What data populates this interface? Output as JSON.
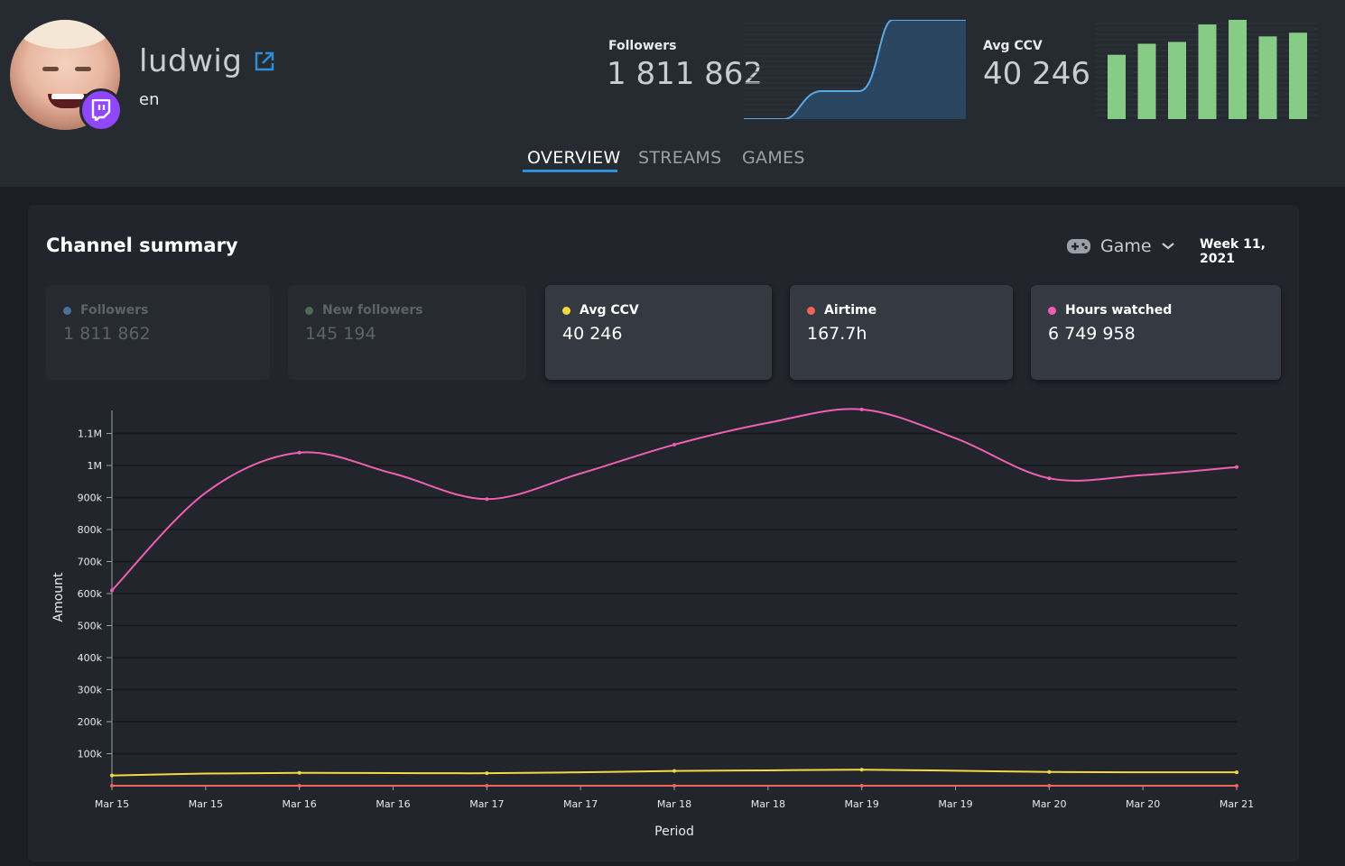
{
  "channel": {
    "name": "ludwig",
    "language": "en",
    "platform_icon": "twitch-icon"
  },
  "header_stats": {
    "followers": {
      "label": "Followers",
      "value": "1 811 862",
      "sparkline_color": "#5aa9e6"
    },
    "avg_ccv": {
      "label": "Avg CCV",
      "value": "40 246",
      "bar_color": "#86cc86",
      "bar_values": [
        70,
        82,
        84,
        103,
        108,
        90,
        94
      ]
    }
  },
  "tabs": [
    {
      "label": "OVERVIEW",
      "active": true
    },
    {
      "label": "STREAMS",
      "active": false
    },
    {
      "label": "GAMES",
      "active": false
    }
  ],
  "panel": {
    "title": "Channel summary",
    "game_select": {
      "label": "Game",
      "icon": "gamepad-icon"
    },
    "period": "Week 11, 2021",
    "cards": [
      {
        "label": "Followers",
        "value": "1 811 862",
        "color": "#4a6f9a",
        "active": false
      },
      {
        "label": "New followers",
        "value": "145 194",
        "color": "#4f6b52",
        "active": false
      },
      {
        "label": "Avg CCV",
        "value": "40 246",
        "color": "#f5d742",
        "active": true
      },
      {
        "label": "Airtime",
        "value": "167.7h",
        "color": "#f0655a",
        "active": true
      },
      {
        "label": "Hours watched",
        "value": "6 749 958",
        "color": "#ef5fb3",
        "active": true
      }
    ]
  },
  "chart_data": {
    "type": "line",
    "xlabel": "Period",
    "ylabel": "Amount",
    "x": [
      "Mar 15",
      "Mar 15",
      "Mar 16",
      "Mar 16",
      "Mar 17",
      "Mar 17",
      "Mar 18",
      "Mar 18",
      "Mar 19",
      "Mar 19",
      "Mar 20",
      "Mar 20",
      "Mar 21"
    ],
    "yticks": [
      "100k",
      "200k",
      "300k",
      "400k",
      "500k",
      "600k",
      "700k",
      "800k",
      "900k",
      "1M",
      "1.1M"
    ],
    "ylim": [
      0,
      1180000
    ],
    "grid": true,
    "series": [
      {
        "name": "Hours watched",
        "color": "#ef5fb3",
        "values": [
          610000,
          915000,
          1040000,
          975000,
          895000,
          975000,
          1065000,
          1133000,
          1175000,
          1085000,
          960000,
          970000,
          995000
        ]
      },
      {
        "name": "Avg CCV",
        "color": "#f5d742",
        "values": [
          32000,
          38000,
          40000,
          39500,
          39000,
          42000,
          46000,
          48000,
          50000,
          47000,
          43000,
          42000,
          42000
        ]
      },
      {
        "name": "Airtime",
        "color": "#f0655a",
        "values": [
          0,
          0,
          0,
          0,
          0,
          0,
          0,
          0,
          0,
          0,
          0,
          0,
          0
        ]
      }
    ]
  }
}
